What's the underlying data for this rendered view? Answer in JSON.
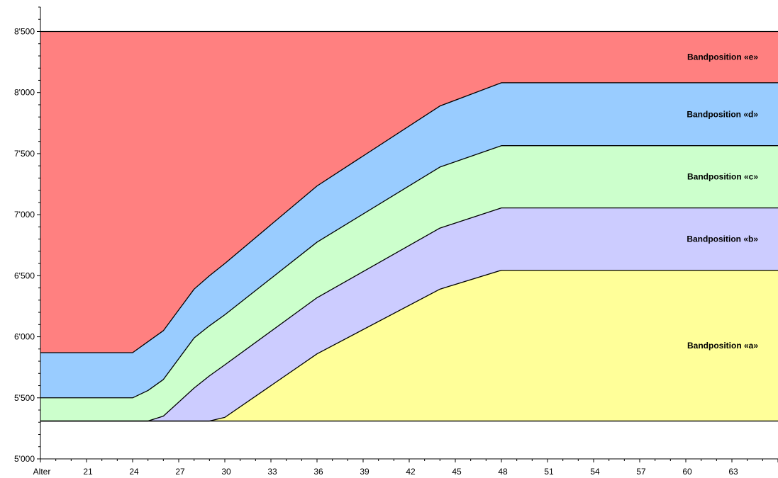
{
  "chart_data": {
    "type": "area",
    "title": "",
    "xlabel": "Alter",
    "ylabel": "",
    "xlim": [
      18,
      66
    ],
    "ylim": [
      5000,
      8700
    ],
    "x_tick_labels": [
      "Alter",
      "21",
      "24",
      "27",
      "30",
      "33",
      "36",
      "39",
      "42",
      "45",
      "48",
      "51",
      "54",
      "57",
      "60",
      "63"
    ],
    "x_tick_values": [
      18,
      21,
      24,
      27,
      30,
      33,
      36,
      39,
      42,
      45,
      48,
      51,
      54,
      57,
      60,
      63
    ],
    "y_tick_labels": [
      "5'000",
      "5'500",
      "6'000",
      "6'500",
      "7'000",
      "7'500",
      "8'000",
      "8'500"
    ],
    "y_tick_values": [
      5000,
      5500,
      6000,
      6500,
      7000,
      7500,
      8000,
      8500
    ],
    "baseline": 5310,
    "x": [
      18,
      24,
      25,
      26,
      28,
      29,
      30,
      36,
      44,
      48,
      66
    ],
    "series": [
      {
        "name": "Bandposition «a»",
        "color": "#FFFF99",
        "values": [
          5310,
          5310,
          5310,
          5310,
          5310,
          5310,
          5340,
          5860,
          6390,
          6545,
          6545
        ]
      },
      {
        "name": "Bandposition «b»",
        "color": "#CCCCFF",
        "values": [
          5310,
          5310,
          5310,
          5350,
          5580,
          5680,
          5770,
          6320,
          6890,
          7055,
          7055
        ]
      },
      {
        "name": "Bandposition «c»",
        "color": "#CCFFCC",
        "values": [
          5500,
          5500,
          5560,
          5650,
          5990,
          6090,
          6180,
          6775,
          7390,
          7565,
          7565
        ]
      },
      {
        "name": "Bandposition «d»",
        "color": "#99CCFF",
        "values": [
          5870,
          5870,
          5960,
          6050,
          6390,
          6500,
          6600,
          7235,
          7890,
          8080,
          8080
        ]
      },
      {
        "name": "Bandposition «e»",
        "color": "#FF8080",
        "values": [
          8500,
          8500,
          8500,
          8500,
          8500,
          8500,
          8500,
          8500,
          8500,
          8500,
          8500
        ]
      }
    ],
    "grid": false,
    "legend": "inline-right"
  }
}
